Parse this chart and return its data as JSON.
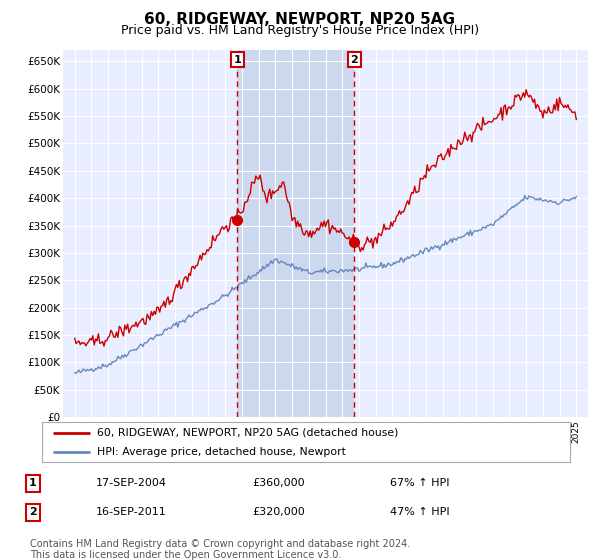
{
  "title": "60, RIDGEWAY, NEWPORT, NP20 5AG",
  "subtitle": "Price paid vs. HM Land Registry's House Price Index (HPI)",
  "title_fontsize": 11,
  "subtitle_fontsize": 9,
  "ylim": [
    0,
    670000
  ],
  "yticks": [
    0,
    50000,
    100000,
    150000,
    200000,
    250000,
    300000,
    350000,
    400000,
    450000,
    500000,
    550000,
    600000,
    650000
  ],
  "ytick_labels": [
    "£0",
    "£50K",
    "£100K",
    "£150K",
    "£200K",
    "£250K",
    "£300K",
    "£350K",
    "£400K",
    "£450K",
    "£500K",
    "£550K",
    "£600K",
    "£650K"
  ],
  "xlim_min": 1994.3,
  "xlim_max": 2025.7,
  "background_color": "#ffffff",
  "plot_bg_color": "#e8eeff",
  "grid_color": "#ffffff",
  "shade_color": "#ccd8f0",
  "red_line_color": "#cc0000",
  "blue_line_color": "#6688bb",
  "marker1_x": 2004.72,
  "marker2_x": 2011.72,
  "marker1_price": 360000,
  "marker2_price": 320000,
  "marker1_label": "1",
  "marker2_label": "2",
  "marker1_date": "17-SEP-2004",
  "marker2_date": "16-SEP-2011",
  "marker1_hpi": "67% ↑ HPI",
  "marker2_hpi": "47% ↑ HPI",
  "legend_label1": "60, RIDGEWAY, NEWPORT, NP20 5AG (detached house)",
  "legend_label2": "HPI: Average price, detached house, Newport",
  "footnote": "Contains HM Land Registry data © Crown copyright and database right 2024.\nThis data is licensed under the Open Government Licence v3.0.",
  "footnote_fontsize": 7,
  "hatch_color": "#bbbbbb"
}
